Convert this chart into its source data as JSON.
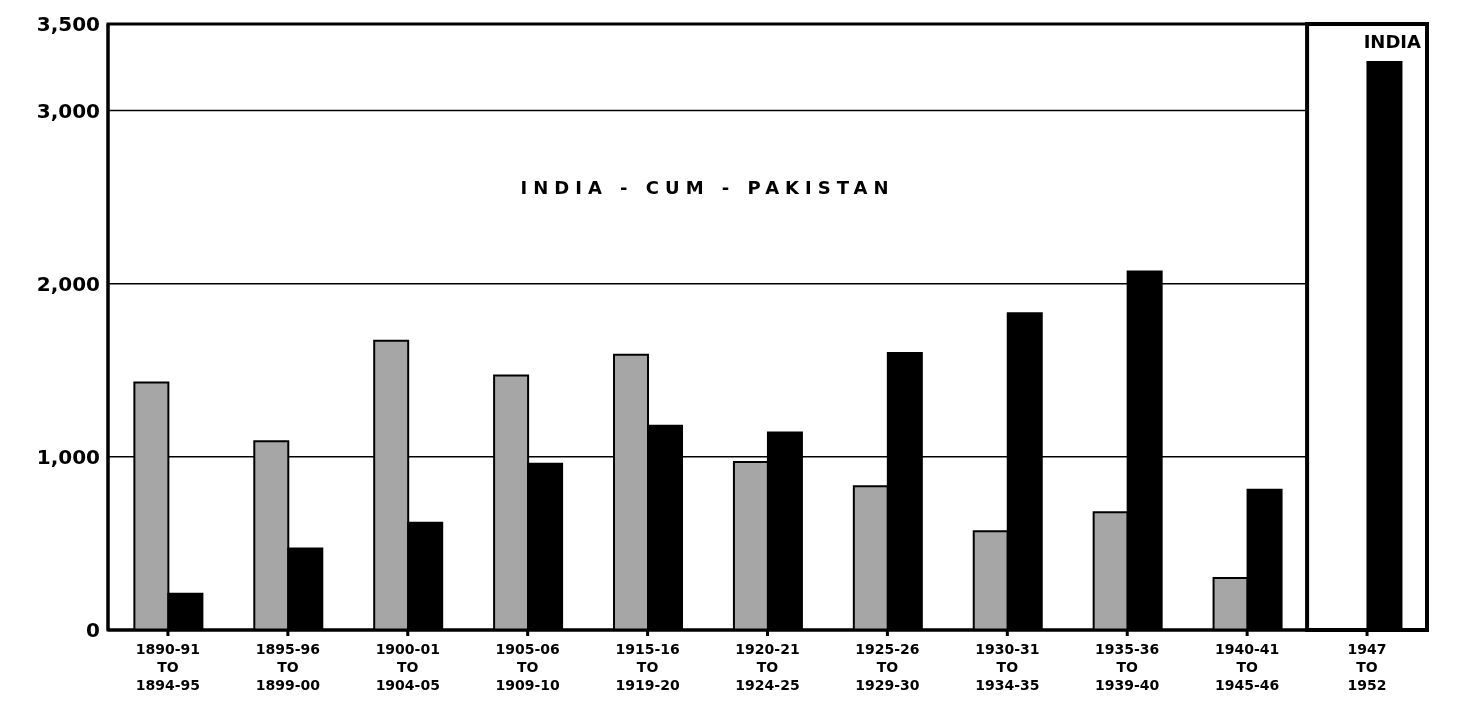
{
  "chart_data": {
    "type": "bar",
    "categories": [
      "1890-91 TO 1894-95",
      "1895-96 TO 1899-00",
      "1900-01 TO 1904-05",
      "1905-06 TO 1909-10",
      "1915-16 TO 1919-20",
      "1920-21 TO 1924-25",
      "1925-26 TO 1929-30",
      "1930-31 TO 1934-35",
      "1935-36 TO 1939-40",
      "1940-41 TO 1945-46",
      "1947 TO 1952"
    ],
    "series": [
      {
        "color": "#a6a6a6",
        "values": [
          1430,
          1090,
          1670,
          1470,
          1590,
          970,
          830,
          570,
          680,
          300,
          null
        ]
      },
      {
        "color": "#000000",
        "values": [
          210,
          470,
          620,
          960,
          1180,
          1140,
          1600,
          1830,
          2070,
          810,
          3280
        ]
      }
    ],
    "ylim": [
      0,
      3500
    ],
    "yticks": [
      {
        "value": 0,
        "label": "0"
      },
      {
        "value": 1000,
        "label": "1,000"
      },
      {
        "value": 2000,
        "label": "2,000"
      },
      {
        "value": 3000,
        "label": "3,000"
      },
      {
        "value": 3500,
        "label": "3,500"
      }
    ],
    "grid": "y",
    "legend": false,
    "annotations": [
      "INDIA - CUM - PAKISTAN"
    ],
    "bands": [
      {
        "axis": "x",
        "from": "1947 TO 1952",
        "to": "1947 TO 1952",
        "label": "INDIA",
        "color": "#ffffff"
      }
    ]
  }
}
